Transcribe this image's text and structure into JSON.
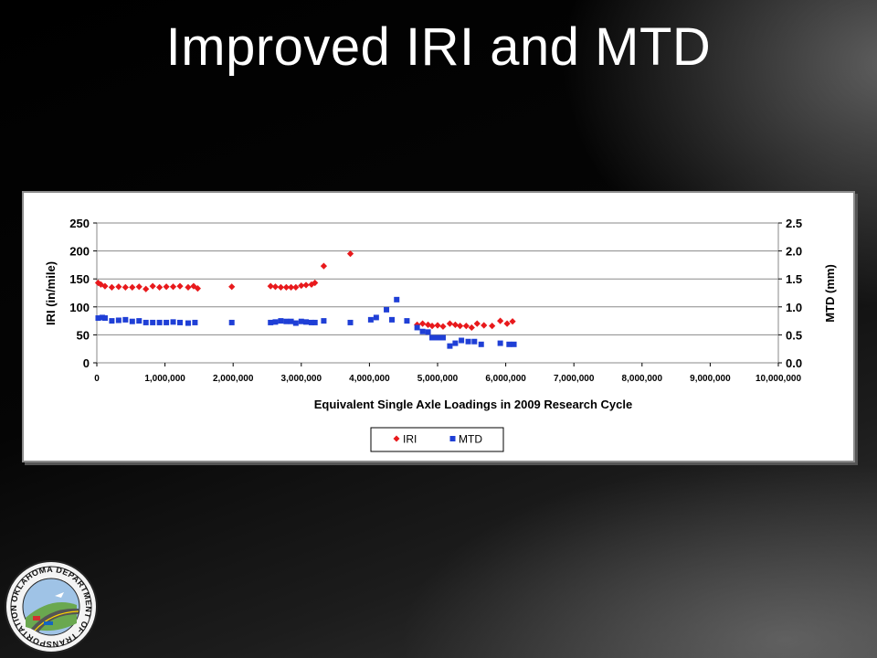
{
  "slide": {
    "title": "Improved IRI and MTD"
  },
  "chart_data": {
    "type": "scatter",
    "title": "",
    "xlabel": "Equivalent Single Axle Loadings in 2009 Research Cycle",
    "ylabel": "IRI (in/mile)",
    "y2label": "MTD (mm)",
    "xlim": [
      0,
      10000000
    ],
    "ylim": [
      0,
      250
    ],
    "y2lim": [
      0,
      2.5
    ],
    "x_ticks": [
      "0",
      "1,000,000",
      "2,000,000",
      "3,000,000",
      "4,000,000",
      "5,000,000",
      "6,000,000",
      "7,000,000",
      "8,000,000",
      "9,000,000",
      "10,000,000"
    ],
    "y_ticks": [
      "0",
      "50",
      "100",
      "150",
      "200",
      "250"
    ],
    "y2_ticks": [
      "0.0",
      "0.5",
      "1.0",
      "1.5",
      "2.0",
      "2.5"
    ],
    "grid": "horizontal",
    "legend_position": "bottom",
    "series": [
      {
        "name": "IRI",
        "axis": "left",
        "marker": "diamond",
        "color": "#e8191c",
        "x": [
          20000,
          60000,
          120000,
          220000,
          320000,
          420000,
          520000,
          620000,
          720000,
          820000,
          920000,
          1020000,
          1120000,
          1220000,
          1340000,
          1420000,
          1480000,
          1980000,
          2550000,
          2620000,
          2700000,
          2780000,
          2850000,
          2920000,
          3000000,
          3070000,
          3150000,
          3200000,
          3330000,
          3720000,
          4700000,
          4780000,
          4860000,
          4920000,
          5000000,
          5080000,
          5180000,
          5260000,
          5330000,
          5420000,
          5500000,
          5580000,
          5680000,
          5800000,
          5920000,
          6020000,
          6100000
        ],
        "y": [
          143,
          140,
          137,
          135,
          136,
          135,
          135,
          136,
          132,
          137,
          135,
          136,
          136,
          137,
          135,
          137,
          133,
          136,
          137,
          136,
          135,
          135,
          135,
          135,
          138,
          139,
          140,
          143,
          173,
          195,
          68,
          70,
          68,
          66,
          67,
          65,
          70,
          68,
          66,
          66,
          63,
          70,
          67,
          66,
          75,
          70,
          74
        ]
      },
      {
        "name": "MTD",
        "axis": "right",
        "marker": "square",
        "color": "#1f3fd6",
        "x": [
          20000,
          80000,
          120000,
          220000,
          320000,
          420000,
          520000,
          620000,
          720000,
          820000,
          920000,
          1020000,
          1120000,
          1220000,
          1340000,
          1440000,
          1980000,
          2550000,
          2620000,
          2700000,
          2780000,
          2850000,
          2920000,
          3000000,
          3070000,
          3150000,
          3200000,
          3330000,
          3720000,
          4020000,
          4100000,
          4250000,
          4330000,
          4400000,
          4550000,
          4700000,
          4780000,
          4860000,
          4920000,
          5000000,
          5080000,
          5180000,
          5260000,
          5350000,
          5450000,
          5540000,
          5640000,
          5920000,
          6050000,
          6120000
        ],
        "y": [
          0.8,
          0.81,
          0.8,
          0.75,
          0.76,
          0.77,
          0.74,
          0.75,
          0.72,
          0.72,
          0.72,
          0.72,
          0.73,
          0.72,
          0.71,
          0.72,
          0.72,
          0.72,
          0.73,
          0.75,
          0.74,
          0.74,
          0.71,
          0.74,
          0.73,
          0.72,
          0.72,
          0.75,
          0.72,
          0.77,
          0.81,
          0.95,
          0.77,
          1.13,
          0.75,
          0.63,
          0.56,
          0.55,
          0.45,
          0.45,
          0.45,
          0.3,
          0.35,
          0.4,
          0.38,
          0.38,
          0.33,
          0.35,
          0.33,
          0.33
        ]
      }
    ]
  }
}
